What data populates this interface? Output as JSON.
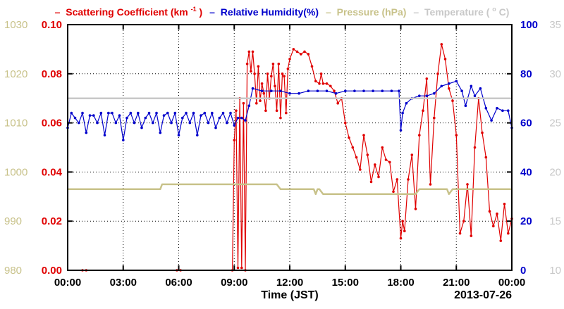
{
  "chart_data": {
    "type": "line",
    "legend": {
      "position": "top",
      "items": [
        {
          "marker": "–",
          "text": "Scattering Coefficient (km",
          "sup": "-1",
          "tail": ")",
          "color": "#e00000"
        },
        {
          "marker": "–",
          "text": "Relative Humidity(%)",
          "sup": "",
          "tail": "",
          "color": "#0000cc"
        },
        {
          "marker": "–",
          "text": "Pressure (hPa)",
          "sup": "",
          "tail": "",
          "color": "#c8c28a"
        },
        {
          "marker": "–",
          "text": "Temperature (",
          "sup": "o",
          "tail": "C)",
          "color": "#c8c8c8"
        }
      ]
    },
    "xlabel": "Time (JST)",
    "date_label": "2013-07-26",
    "x_ticks": [
      "00:00",
      "03:00",
      "06:00",
      "09:00",
      "12:00",
      "15:00",
      "18:00",
      "21:00",
      "00:00"
    ],
    "xlim_hours": [
      0,
      24
    ],
    "grid": true,
    "axes": {
      "scattering": {
        "ticks": [
          "0.00",
          "0.02",
          "0.04",
          "0.06",
          "0.08",
          "0.10"
        ],
        "ylim": [
          0,
          0.1
        ],
        "color": "#e00000"
      },
      "pressure": {
        "ticks": [
          "980",
          "990",
          "1000",
          "1010",
          "1020",
          "1030"
        ],
        "ylim": [
          980,
          1030
        ],
        "color": "#c8c28a"
      },
      "humidity": {
        "ticks": [
          "0",
          "20",
          "40",
          "60",
          "80",
          "100"
        ],
        "ylim": [
          0,
          100
        ],
        "color": "#0000cc"
      },
      "temperature": {
        "ticks": [
          "10",
          "15",
          "20",
          "25",
          "30",
          "35"
        ],
        "ylim": [
          10,
          35
        ],
        "color": "#c8c8c8"
      }
    },
    "series": [
      {
        "name": "Scattering Coefficient",
        "axis": "scattering",
        "color": "#e00000",
        "x": [
          0.8,
          1.0,
          5.9,
          6.1,
          8.9,
          9.0,
          9.1,
          9.2,
          9.3,
          9.4,
          9.5,
          9.6,
          9.7,
          9.8,
          9.9,
          10.0,
          10.1,
          10.2,
          10.3,
          10.4,
          10.5,
          10.6,
          10.7,
          10.8,
          10.9,
          11.0,
          11.1,
          11.2,
          11.3,
          11.4,
          11.5,
          11.6,
          11.7,
          11.8,
          11.9,
          12.0,
          12.2,
          12.4,
          12.6,
          12.8,
          13.0,
          13.2,
          13.4,
          13.6,
          13.7,
          13.8,
          14.0,
          14.2,
          14.4,
          14.6,
          14.8,
          15.0,
          15.2,
          15.4,
          15.6,
          15.8,
          16.0,
          16.2,
          16.4,
          16.6,
          16.8,
          17.0,
          17.2,
          17.4,
          17.6,
          17.8,
          18.0,
          18.1,
          18.2,
          18.4,
          18.6,
          18.8,
          19.0,
          19.2,
          19.4,
          19.6,
          19.8,
          20.0,
          20.2,
          20.4,
          20.6,
          20.8,
          21.0,
          21.2,
          21.4,
          21.6,
          21.8,
          22.0,
          22.2,
          22.4,
          22.6,
          22.8,
          23.0,
          23.2,
          23.4,
          23.6,
          23.8,
          24.0
        ],
        "values": [
          0.0,
          0.0,
          0.0,
          0.0,
          0.0,
          0.053,
          0.065,
          0.001,
          0.07,
          0.001,
          0.068,
          0.0,
          0.084,
          0.089,
          0.081,
          0.089,
          0.08,
          0.068,
          0.083,
          0.069,
          0.076,
          0.072,
          0.065,
          0.08,
          0.07,
          0.079,
          0.084,
          0.075,
          0.065,
          0.084,
          0.062,
          0.08,
          0.079,
          0.064,
          0.082,
          0.086,
          0.09,
          0.089,
          0.088,
          0.089,
          0.088,
          0.083,
          0.077,
          0.076,
          0.08,
          0.076,
          0.076,
          0.075,
          0.073,
          0.068,
          0.07,
          0.06,
          0.054,
          0.05,
          0.046,
          0.041,
          0.055,
          0.047,
          0.036,
          0.043,
          0.038,
          0.05,
          0.045,
          0.044,
          0.032,
          0.037,
          0.013,
          0.02,
          0.016,
          0.037,
          0.047,
          0.025,
          0.055,
          0.065,
          0.078,
          0.035,
          0.062,
          0.08,
          0.092,
          0.086,
          0.074,
          0.069,
          0.055,
          0.015,
          0.02,
          0.035,
          0.014,
          0.05,
          0.07,
          0.056,
          0.046,
          0.024,
          0.018,
          0.023,
          0.012,
          0.027,
          0.015,
          0.021
        ]
      },
      {
        "name": "Relative Humidity",
        "axis": "humidity",
        "color": "#0000cc",
        "x": [
          0.0,
          0.2,
          0.4,
          0.6,
          0.8,
          1.0,
          1.2,
          1.4,
          1.6,
          1.8,
          2.0,
          2.2,
          2.4,
          2.6,
          2.8,
          3.0,
          3.2,
          3.4,
          3.6,
          3.8,
          4.0,
          4.2,
          4.4,
          4.6,
          4.8,
          5.0,
          5.2,
          5.4,
          5.6,
          5.8,
          6.0,
          6.2,
          6.4,
          6.6,
          6.8,
          7.0,
          7.2,
          7.4,
          7.6,
          7.8,
          8.0,
          8.2,
          8.4,
          8.6,
          8.8,
          9.0,
          9.2,
          9.4,
          9.6,
          9.8,
          10.0,
          10.5,
          11.0,
          11.5,
          12.0,
          12.5,
          13.0,
          13.5,
          14.0,
          14.5,
          15.0,
          15.5,
          16.0,
          16.5,
          17.0,
          17.5,
          17.9,
          18.0,
          18.1,
          18.3,
          18.6,
          19.0,
          19.4,
          19.8,
          20.2,
          20.6,
          21.0,
          21.3,
          21.5,
          21.8,
          22.0,
          22.3,
          22.6,
          22.9,
          23.2,
          23.5,
          23.8,
          24.0
        ],
        "values": [
          58,
          64,
          62,
          60,
          64,
          56,
          63,
          63,
          60,
          64,
          55,
          64,
          64,
          60,
          63,
          53,
          62,
          64,
          60,
          64,
          58,
          62,
          64,
          60,
          64,
          56,
          63,
          64,
          60,
          64,
          55,
          62,
          64,
          60,
          64,
          55,
          63,
          64,
          60,
          64,
          58,
          62,
          64,
          60,
          64,
          59,
          62,
          62,
          61,
          67,
          74,
          73,
          73,
          73,
          72,
          72,
          73,
          73,
          73,
          72,
          73,
          73,
          73,
          73,
          73,
          73,
          73,
          57,
          64,
          68,
          70,
          71,
          71,
          72,
          75,
          76,
          77,
          73,
          67,
          75,
          71,
          74,
          66,
          61,
          66,
          65,
          65,
          58
        ]
      },
      {
        "name": "Pressure",
        "axis": "pressure",
        "color": "#c8c28a",
        "x": [
          0.0,
          5.0,
          5.1,
          11.3,
          11.5,
          13.3,
          13.4,
          13.5,
          13.6,
          13.8,
          18.8,
          19.0,
          20.5,
          20.6,
          20.8,
          24.0
        ],
        "values": [
          996.5,
          996.5,
          997.5,
          997.5,
          996.5,
          996.5,
          995.5,
          996.5,
          996.5,
          995.5,
          995.5,
          996.5,
          996.5,
          995.5,
          996.5,
          996.5
        ]
      },
      {
        "name": "Temperature",
        "axis": "temperature",
        "color": "#c8c8c8",
        "x": [
          0.0,
          8.8,
          9.0,
          24.0
        ],
        "values": [
          27.5,
          27.5,
          27.5,
          27.5
        ]
      }
    ]
  }
}
